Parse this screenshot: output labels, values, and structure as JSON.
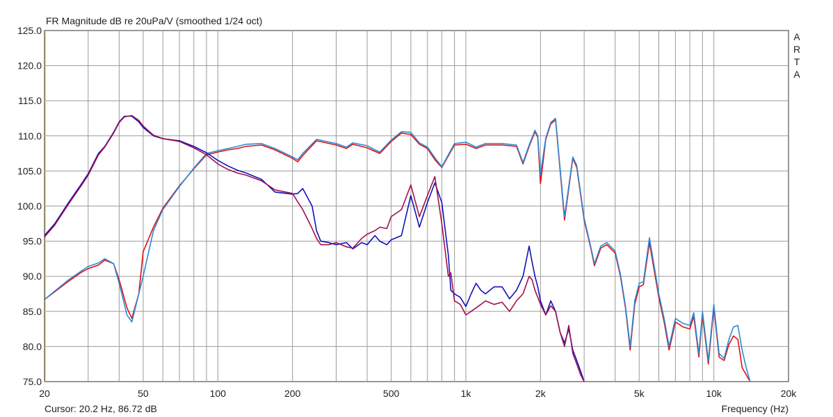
{
  "chart_data": {
    "type": "line",
    "title": "FR Magnitude dB re 20uPa/V (smoothed 1/24 oct)",
    "watermark": "ARTA",
    "xlabel": "Frequency (Hz)",
    "ylabel": "",
    "cursor_readout": "Cursor: 20.2 Hz, 86.72 dB",
    "x_scale": "log",
    "xlim": [
      20,
      20000
    ],
    "ylim": [
      75,
      125
    ],
    "grid": true,
    "x_ticks": [
      {
        "value": 20,
        "label": "20"
      },
      {
        "value": 50,
        "label": "50"
      },
      {
        "value": 100,
        "label": "100"
      },
      {
        "value": 200,
        "label": "200"
      },
      {
        "value": 500,
        "label": "500"
      },
      {
        "value": 1000,
        "label": "1k"
      },
      {
        "value": 2000,
        "label": "2k"
      },
      {
        "value": 5000,
        "label": "5k"
      },
      {
        "value": 10000,
        "label": "10k"
      },
      {
        "value": 20000,
        "label": "20k"
      }
    ],
    "y_ticks": [
      {
        "value": 125,
        "label": "125.0"
      },
      {
        "value": 120,
        "label": "120.0"
      },
      {
        "value": 115,
        "label": "115.0"
      },
      {
        "value": 110,
        "label": "110.0"
      },
      {
        "value": 105,
        "label": "105.0"
      },
      {
        "value": 100,
        "label": "100.0"
      },
      {
        "value": 95,
        "label": "95.0"
      },
      {
        "value": 90,
        "label": "90.0"
      },
      {
        "value": 85,
        "label": "85.0"
      },
      {
        "value": 80,
        "label": "80.0"
      },
      {
        "value": 75,
        "label": "75.0"
      }
    ],
    "series": [
      {
        "color": "#e01010",
        "x": [
          20,
          22,
          25,
          28,
          30,
          33,
          35,
          38,
          40,
          43,
          45,
          48,
          50,
          55,
          60,
          70,
          80,
          90,
          100,
          110,
          120,
          130,
          150,
          170,
          200,
          210,
          220,
          250,
          300,
          330,
          350,
          400,
          430,
          450,
          500,
          550,
          600,
          650,
          700,
          750,
          800,
          900,
          1000,
          1100,
          1200,
          1400,
          1600,
          1700,
          1800,
          1900,
          1950,
          2000,
          2100,
          2200,
          2300,
          2500,
          2700,
          2800,
          3000,
          3200,
          3300,
          3500,
          3700,
          4000,
          4200,
          4400,
          4600,
          4800,
          5000,
          5200,
          5500,
          6000,
          6300,
          6600,
          7000,
          7500,
          8000,
          8300,
          8700,
          9000,
          9500,
          10000,
          10500,
          11000,
          11500,
          12000,
          12500,
          13000,
          13500,
          14000
        ],
        "y": [
          86.7,
          87.8,
          89.3,
          90.5,
          91.1,
          91.6,
          92.3,
          91.8,
          89.5,
          85.5,
          84.0,
          87.5,
          93.5,
          97.0,
          99.7,
          102.9,
          105.3,
          107.3,
          107.7,
          108.0,
          108.2,
          108.5,
          108.7,
          108.0,
          106.8,
          106.3,
          107.2,
          109.3,
          108.7,
          108.2,
          108.8,
          108.3,
          107.8,
          107.5,
          109.2,
          110.4,
          110.2,
          108.8,
          108.2,
          106.6,
          105.5,
          108.7,
          108.8,
          108.2,
          108.7,
          108.7,
          108.5,
          106.0,
          108.5,
          110.6,
          109.8,
          103.2,
          109.5,
          111.7,
          112.3,
          98.0,
          106.8,
          105.5,
          98.0,
          93.8,
          91.5,
          94.0,
          94.5,
          93.3,
          90.0,
          85.5,
          79.5,
          86.0,
          88.5,
          88.8,
          94.8,
          87.0,
          83.5,
          79.5,
          83.5,
          82.8,
          82.5,
          84.3,
          78.5,
          84.5,
          77.5,
          85.5,
          78.5,
          78.0,
          80.3,
          81.5,
          81.0,
          77.0,
          76.0,
          75.0
        ]
      },
      {
        "color": "#2b8ad8",
        "x": [
          20,
          22,
          25,
          28,
          30,
          33,
          35,
          38,
          40,
          43,
          45,
          48,
          50,
          55,
          60,
          70,
          80,
          90,
          100,
          110,
          120,
          130,
          150,
          170,
          200,
          210,
          220,
          250,
          300,
          330,
          350,
          400,
          430,
          450,
          500,
          550,
          600,
          650,
          700,
          750,
          800,
          900,
          1000,
          1100,
          1200,
          1400,
          1600,
          1700,
          1800,
          1900,
          1950,
          2000,
          2100,
          2200,
          2300,
          2500,
          2700,
          2800,
          3000,
          3200,
          3300,
          3500,
          3700,
          4000,
          4200,
          4400,
          4600,
          4800,
          5000,
          5200,
          5500,
          6000,
          6300,
          6600,
          7000,
          7500,
          8000,
          8300,
          8700,
          9000,
          9500,
          10000,
          10500,
          11000,
          11500,
          12000,
          12500,
          13000,
          13500,
          14000
        ],
        "y": [
          86.7,
          87.9,
          89.5,
          90.7,
          91.4,
          91.9,
          92.5,
          91.8,
          89.0,
          84.5,
          83.5,
          87.5,
          90.0,
          96.5,
          99.5,
          102.8,
          105.4,
          107.5,
          107.9,
          108.2,
          108.5,
          108.8,
          108.9,
          108.2,
          107.0,
          106.6,
          107.5,
          109.5,
          108.9,
          108.4,
          109.0,
          108.6,
          108.0,
          107.7,
          109.4,
          110.6,
          110.5,
          109.0,
          108.4,
          106.9,
          105.6,
          108.9,
          109.1,
          108.4,
          108.9,
          108.9,
          108.7,
          106.2,
          108.7,
          110.8,
          110.0,
          104.5,
          109.7,
          111.9,
          112.5,
          98.5,
          107.0,
          105.8,
          98.3,
          94.0,
          91.8,
          94.3,
          94.8,
          93.6,
          90.3,
          85.8,
          80.0,
          86.5,
          89.0,
          89.2,
          95.5,
          87.5,
          84.0,
          80.0,
          84.0,
          83.3,
          83.0,
          84.8,
          79.0,
          85.0,
          78.0,
          86.0,
          79.0,
          78.3,
          81.0,
          82.8,
          83.0,
          79.5,
          77.0,
          75.0
        ]
      },
      {
        "color": "#1010b8",
        "x": [
          20,
          22,
          25,
          28,
          30,
          33,
          35,
          38,
          40,
          42,
          45,
          48,
          50,
          55,
          60,
          70,
          80,
          90,
          100,
          110,
          120,
          130,
          150,
          170,
          200,
          210,
          220,
          240,
          250,
          260,
          280,
          300,
          330,
          350,
          380,
          400,
          430,
          450,
          480,
          500,
          550,
          600,
          650,
          700,
          750,
          800,
          850,
          870,
          900,
          950,
          1000,
          1050,
          1100,
          1150,
          1200,
          1300,
          1400,
          1500,
          1600,
          1700,
          1800,
          1850,
          1900,
          1950,
          2000,
          2100,
          2200,
          2300,
          2400,
          2500,
          2600,
          2700,
          2800,
          2900,
          3000
        ],
        "y": [
          95.8,
          97.5,
          100.5,
          103.0,
          104.6,
          107.5,
          108.5,
          110.5,
          112.0,
          112.8,
          112.8,
          112.0,
          111.2,
          110.0,
          109.6,
          109.3,
          108.5,
          107.6,
          106.5,
          105.7,
          105.1,
          104.7,
          103.8,
          102.0,
          101.7,
          101.8,
          102.5,
          100.0,
          96.5,
          95.0,
          94.8,
          94.5,
          94.8,
          93.9,
          94.8,
          94.5,
          95.8,
          95.0,
          94.5,
          95.2,
          95.8,
          101.5,
          97.0,
          100.5,
          103.3,
          100.5,
          93.0,
          88.0,
          87.5,
          87.0,
          85.7,
          87.5,
          89.0,
          88.0,
          87.5,
          88.5,
          88.5,
          86.8,
          88.0,
          90.0,
          94.3,
          92.0,
          90.0,
          88.5,
          86.5,
          84.5,
          86.5,
          85.0,
          82.0,
          80.5,
          82.5,
          79.5,
          78.0,
          76.5,
          75.0
        ]
      },
      {
        "color": "#a01050",
        "x": [
          20,
          22,
          25,
          28,
          30,
          33,
          35,
          38,
          40,
          42,
          45,
          48,
          50,
          55,
          60,
          70,
          80,
          90,
          100,
          110,
          120,
          130,
          150,
          170,
          200,
          210,
          220,
          240,
          250,
          260,
          280,
          300,
          330,
          350,
          380,
          400,
          430,
          450,
          480,
          500,
          550,
          600,
          650,
          700,
          750,
          800,
          850,
          870,
          900,
          950,
          1000,
          1050,
          1100,
          1150,
          1200,
          1300,
          1400,
          1500,
          1600,
          1700,
          1800,
          1850,
          1900,
          1950,
          2000,
          2100,
          2200,
          2300,
          2400,
          2500,
          2600,
          2700,
          2800,
          2900,
          3000
        ],
        "y": [
          95.6,
          97.3,
          100.3,
          102.8,
          104.4,
          107.3,
          108.4,
          110.4,
          111.9,
          112.7,
          112.9,
          112.2,
          111.4,
          110.1,
          109.6,
          109.2,
          108.3,
          107.3,
          106.0,
          105.2,
          104.7,
          104.4,
          103.6,
          102.3,
          101.8,
          100.6,
          99.5,
          96.8,
          95.4,
          94.5,
          94.5,
          94.8,
          94.2,
          94.0,
          95.4,
          96.0,
          96.5,
          97.0,
          96.8,
          98.5,
          99.5,
          103.0,
          98.5,
          101.5,
          104.2,
          97.5,
          90.0,
          90.5,
          86.5,
          86.0,
          84.5,
          85.0,
          85.5,
          86.0,
          86.5,
          86.0,
          86.3,
          85.0,
          86.5,
          87.5,
          90.0,
          89.5,
          88.0,
          87.0,
          86.0,
          84.5,
          85.8,
          85.0,
          82.0,
          80.0,
          83.0,
          79.0,
          77.5,
          76.0,
          75.0
        ]
      }
    ]
  }
}
